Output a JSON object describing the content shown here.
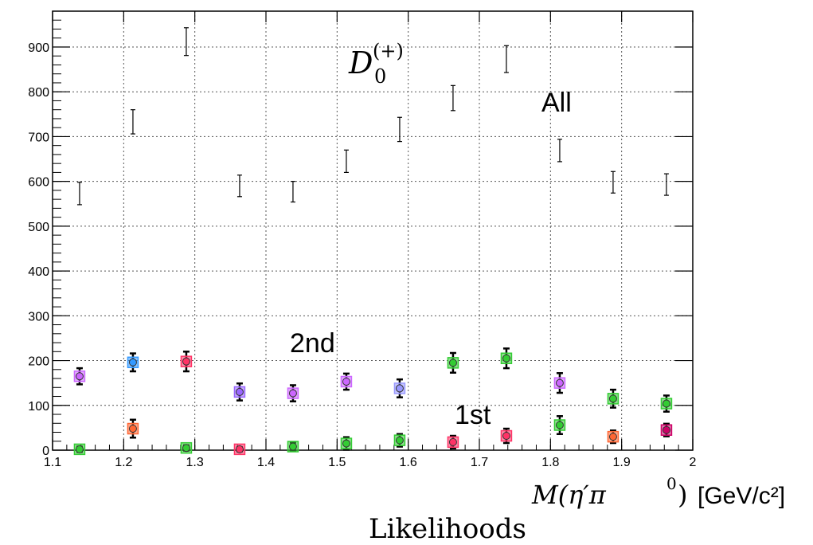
{
  "chart_data": {
    "type": "scatter",
    "title": "",
    "xlabel": {
      "main": "M(η′π",
      "superscript": "0",
      "tail": ")",
      "unit": "[GeV/c²]"
    },
    "ylabel": "",
    "caption": "Likelihoods",
    "xlim": [
      1.1,
      2.0
    ],
    "ylim": [
      0,
      980
    ],
    "xticks": [
      1.1,
      1.2,
      1.3,
      1.4,
      1.5,
      1.6,
      1.7,
      1.8,
      1.9,
      2.0
    ],
    "xtick_labels": [
      "1.1",
      "1.2",
      "1.3",
      "1.4",
      "1.5",
      "1.6",
      "1.7",
      "1.8",
      "1.9",
      "2"
    ],
    "yticks": [
      0,
      100,
      200,
      300,
      400,
      500,
      600,
      700,
      800,
      900
    ],
    "ytick_labels": [
      "0",
      "100",
      "200",
      "300",
      "400",
      "500",
      "600",
      "700",
      "800",
      "900"
    ],
    "grid": true,
    "annotations": {
      "d0_base": "D",
      "d0_sub": "0",
      "d0_sup": "(+)",
      "all": "All",
      "second": "2nd",
      "first": "1st"
    },
    "series": [
      {
        "marker": "errorbar",
        "color": "#000000",
        "x": [
          1.138,
          1.213,
          1.288,
          1.363,
          1.438,
          1.513,
          1.588,
          1.663,
          1.738,
          1.813,
          1.888,
          1.963
        ],
        "y": [
          573,
          733,
          912,
          590,
          577,
          645,
          716,
          786,
          873,
          669,
          598,
          593
        ],
        "err": [
          25,
          27,
          31,
          24,
          23,
          25,
          27,
          28,
          30,
          25,
          24,
          24
        ]
      },
      {
        "marker": "colored",
        "colors": [
          "#cc66ff",
          "#3399ff",
          "#ff3366",
          "#9966ff",
          "#cc66ff",
          "#cc66ff",
          "#9999ff",
          "#33cc33",
          "#33cc33",
          "#cc66ff",
          "#33cc33",
          "#33cc33"
        ],
        "x": [
          1.138,
          1.213,
          1.288,
          1.363,
          1.438,
          1.513,
          1.588,
          1.663,
          1.738,
          1.813,
          1.888,
          1.963
        ],
        "y": [
          165,
          196,
          198,
          130,
          127,
          153,
          138,
          195,
          205,
          150,
          115,
          104
        ],
        "err": [
          18,
          20,
          22,
          19,
          18,
          18,
          20,
          22,
          22,
          22,
          20,
          18
        ]
      },
      {
        "marker": "colored",
        "colors": [
          "#33cc33",
          "#ff6633",
          "#33cc33",
          "#ff3366",
          "#33cc33",
          "#33cc33",
          "#33cc33",
          "#ff3366",
          "#ff3366",
          "#33cc33",
          "#ff6633",
          "#cc0066"
        ],
        "x": [
          1.138,
          1.213,
          1.288,
          1.363,
          1.438,
          1.513,
          1.588,
          1.663,
          1.738,
          1.813,
          1.888,
          1.963
        ],
        "y": [
          2,
          48,
          5,
          2,
          8,
          15,
          22,
          18,
          32,
          56,
          30,
          45
        ],
        "err": [
          6,
          20,
          6,
          5,
          9,
          14,
          14,
          14,
          16,
          20,
          14,
          14
        ]
      }
    ]
  }
}
